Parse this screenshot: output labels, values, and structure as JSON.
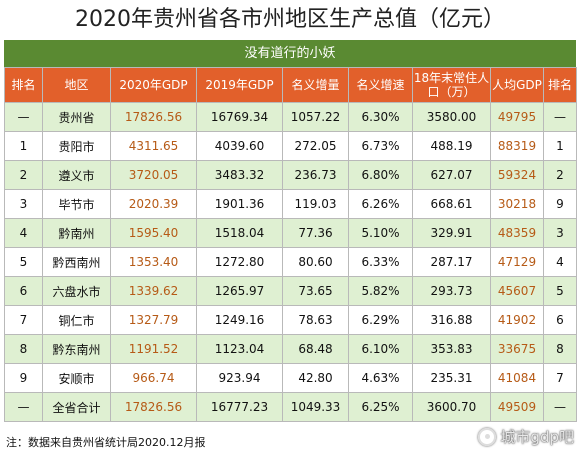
{
  "title": "2020年贵州省各市州地区生产总值（亿元）",
  "subtitle": "没有道行的小妖",
  "headers": [
    "排名",
    "地区",
    "2020年GDP",
    "2019年GDP",
    "名义增量",
    "名义增速",
    "18年末常住人口（万）",
    "人均GDP",
    "排名"
  ],
  "rows": [
    [
      "—",
      "贵州省",
      "17826.56",
      "16769.34",
      "1057.22",
      "6.30%",
      "3580.00",
      "49795",
      "—"
    ],
    [
      "1",
      "贵阳市",
      "4311.65",
      "4039.60",
      "272.05",
      "6.73%",
      "488.19",
      "88319",
      "1"
    ],
    [
      "2",
      "遵义市",
      "3720.05",
      "3483.32",
      "236.73",
      "6.80%",
      "627.07",
      "59324",
      "2"
    ],
    [
      "3",
      "毕节市",
      "2020.39",
      "1901.36",
      "119.03",
      "6.26%",
      "668.61",
      "30218",
      "9"
    ],
    [
      "4",
      "黔南州",
      "1595.40",
      "1518.04",
      "77.36",
      "5.10%",
      "329.91",
      "48359",
      "3"
    ],
    [
      "5",
      "黔西南州",
      "1353.40",
      "1272.80",
      "80.60",
      "6.33%",
      "287.17",
      "47129",
      "4"
    ],
    [
      "6",
      "六盘水市",
      "1339.62",
      "1265.97",
      "73.65",
      "5.82%",
      "293.73",
      "45607",
      "5"
    ],
    [
      "7",
      "铜仁市",
      "1327.79",
      "1249.16",
      "78.63",
      "6.29%",
      "316.88",
      "41902",
      "6"
    ],
    [
      "8",
      "黔东南州",
      "1191.52",
      "1123.04",
      "68.48",
      "6.10%",
      "353.83",
      "33675",
      "8"
    ],
    [
      "9",
      "安顺市",
      "966.74",
      "923.94",
      "42.80",
      "4.63%",
      "235.31",
      "41084",
      "7"
    ],
    [
      "—",
      "全省合计",
      "17826.56",
      "16777.23",
      "1049.33",
      "6.25%",
      "3600.70",
      "49509",
      "—"
    ]
  ],
  "note": "注：数据来自贵州省统计局2020.12月报",
  "watermark": "城市gdp吧",
  "colors": {
    "header_bg": "#e2602b",
    "subtitle_bg": "#5a8a32",
    "row_stripe": "#dff0d2",
    "highlight_text": "#b65a16"
  }
}
